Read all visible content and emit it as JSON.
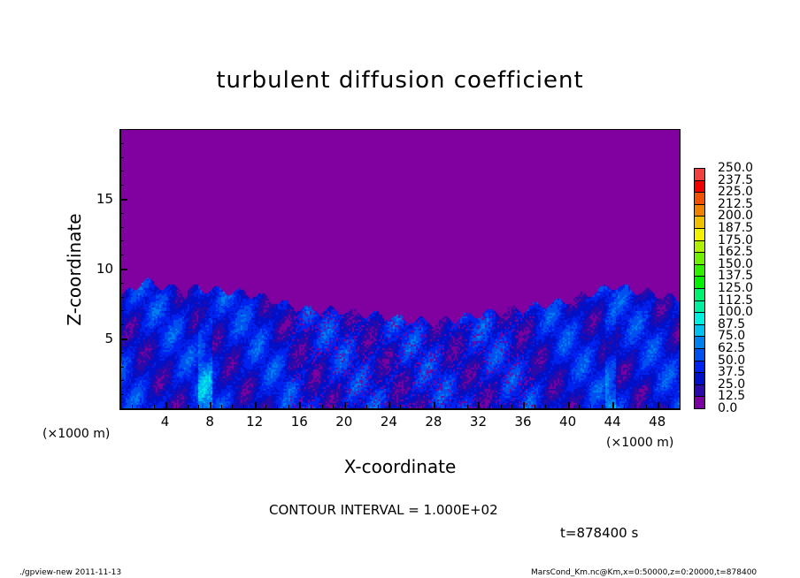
{
  "chart_data": {
    "type": "heatmap",
    "title": "turbulent diffusion coefficient",
    "xlabel": "X-coordinate",
    "ylabel": "Z-coordinate",
    "x_unit": "(×1000 m)",
    "y_unit": "(×1000 m)",
    "xlim": [
      0,
      50
    ],
    "ylim": [
      0,
      20
    ],
    "xticks": [
      4,
      8,
      12,
      16,
      20,
      24,
      28,
      32,
      36,
      40,
      44,
      48
    ],
    "yticks": [
      5,
      10,
      15
    ],
    "colorbar": {
      "levels": [
        "0.0",
        "12.5",
        "25.0",
        "37.5",
        "50.0",
        "62.5",
        "75.0",
        "87.5",
        "100.0",
        "112.5",
        "125.0",
        "137.5",
        "150.0",
        "162.5",
        "175.0",
        "187.5",
        "200.0",
        "212.5",
        "225.0",
        "237.5",
        "250.0"
      ],
      "colors": [
        "#7a00a0",
        "#2a0aa8",
        "#0010c8",
        "#0022f0",
        "#0050f0",
        "#0080f0",
        "#00c0f0",
        "#00f0e0",
        "#00f0a0",
        "#00f070",
        "#00f000",
        "#30f000",
        "#70f000",
        "#b0f000",
        "#f0f000",
        "#f0c000",
        "#f08000",
        "#f05000",
        "#f00000",
        "#f04040",
        "#f08080"
      ]
    },
    "background_value_color": "#8000a0",
    "turbulent_layer_top": {
      "x": [
        0,
        2,
        4,
        8,
        12,
        16,
        20,
        24,
        28,
        32,
        36,
        40,
        44,
        48,
        50
      ],
      "z": [
        8.0,
        9.2,
        8.7,
        8.6,
        8.2,
        7.2,
        7.0,
        6.6,
        6.2,
        6.8,
        7.2,
        7.8,
        8.8,
        8.2,
        7.8
      ]
    },
    "contour_interval": "CONTOUR INTERVAL = 1.000E+02",
    "time_label": "t=878400 s"
  },
  "footer": {
    "left": "./gpview-new  2011-11-13",
    "right": "MarsCond_Km.nc@Km,x=0:50000,z=0:20000,t=878400"
  }
}
